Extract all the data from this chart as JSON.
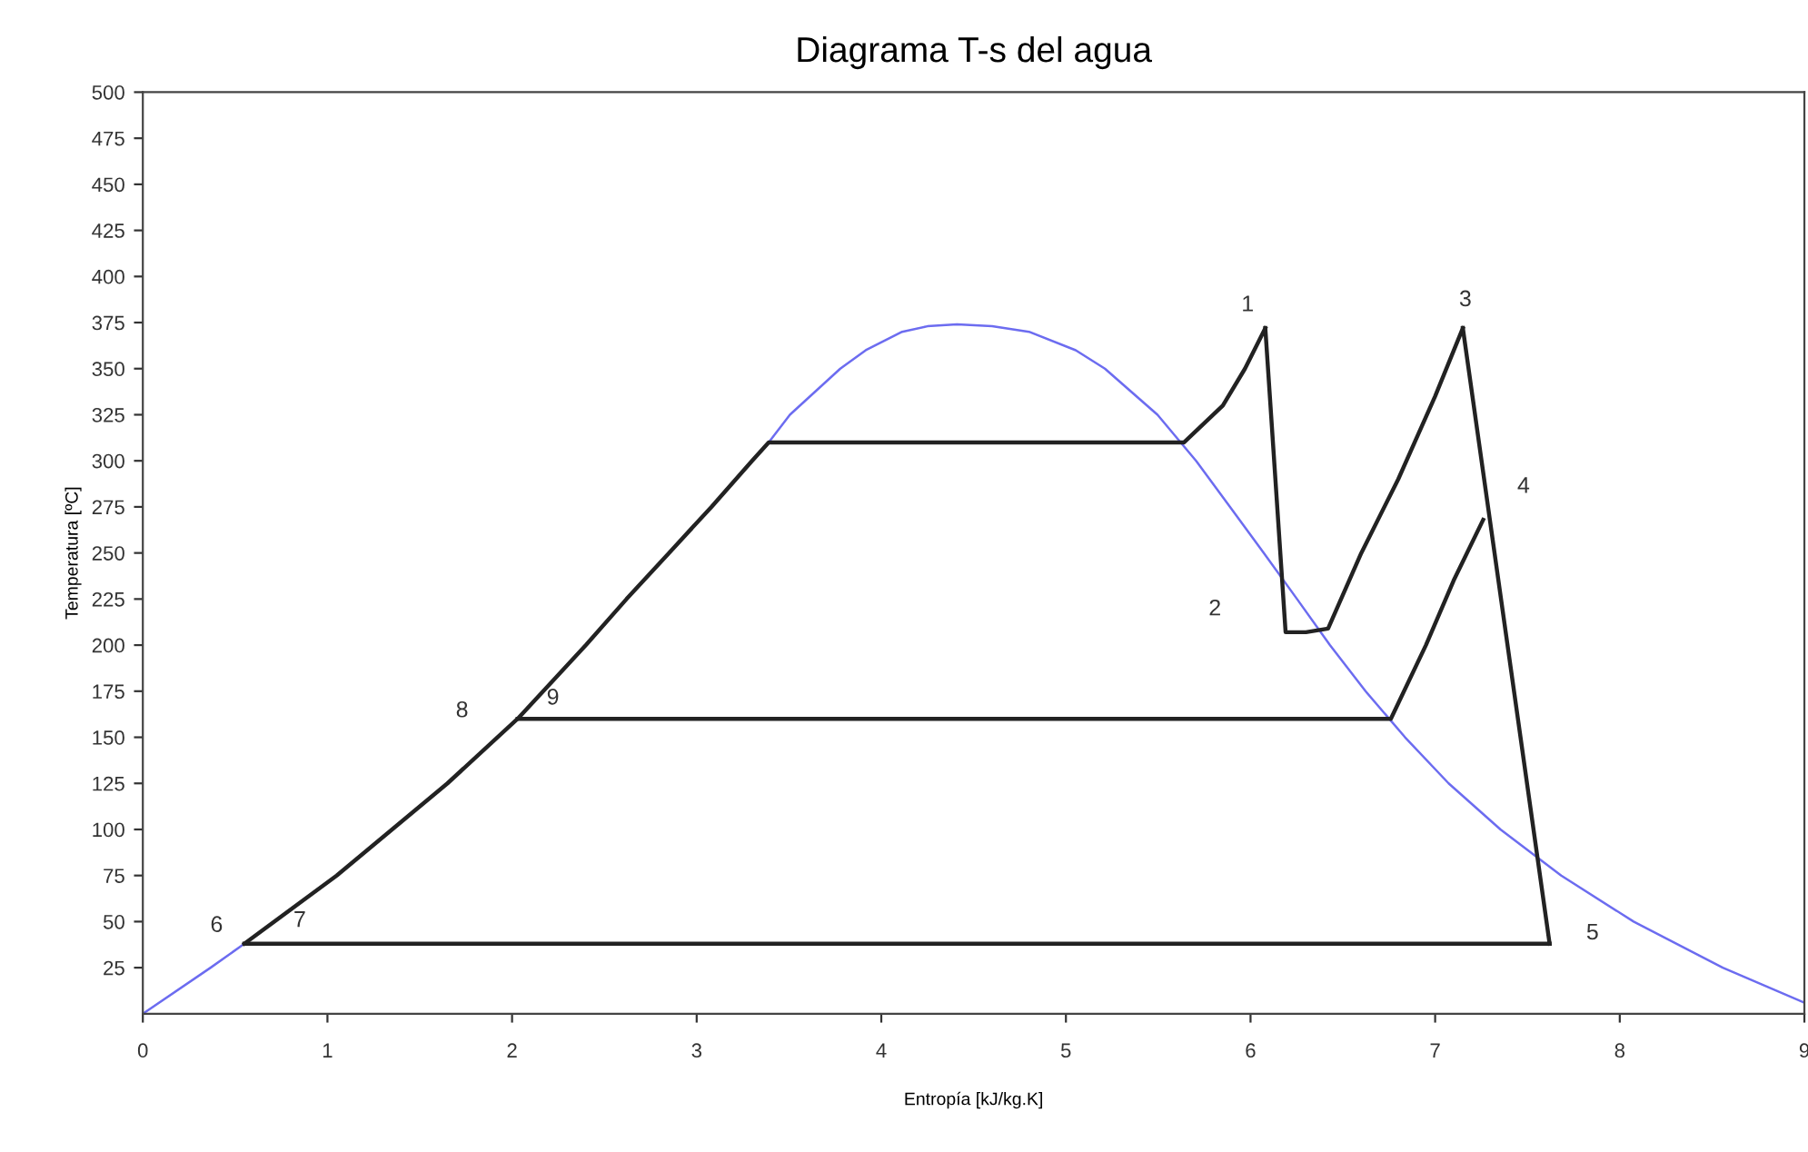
{
  "chart_data": {
    "type": "line",
    "title": "Diagrama T-s del agua",
    "xlabel": "Entropía [kJ/kg.K]",
    "ylabel": "Temperatura [ºC]",
    "xlim": [
      0,
      9
    ],
    "xticks": [
      0,
      1,
      2,
      3,
      4,
      5,
      6,
      7,
      8,
      9
    ],
    "ylim": [
      0,
      500
    ],
    "yticks": [
      25,
      50,
      75,
      100,
      125,
      150,
      175,
      200,
      225,
      250,
      275,
      300,
      325,
      350,
      375,
      400,
      425,
      450,
      475,
      500
    ],
    "grid": false,
    "legend": false,
    "marker": "none",
    "line_style": "solid",
    "series": [
      {
        "color": "#6c6cf0",
        "x": [
          0,
          0.367,
          0.55,
          null,
          3.39,
          3.505,
          3.778,
          3.916,
          4.113,
          4.25,
          4.41,
          4.6,
          4.8,
          5.053,
          5.211,
          5.496,
          5.705,
          5.889,
          6.072,
          6.252,
          6.43,
          6.623,
          6.837,
          7.073,
          7.354,
          7.683,
          8.075,
          8.558,
          9.0
        ],
        "values": [
          0,
          25,
          38,
          null,
          310,
          325,
          350,
          360,
          370,
          373,
          374,
          373,
          370,
          360,
          350,
          325,
          300,
          275,
          250,
          225,
          200,
          175,
          150,
          125,
          100,
          75,
          50,
          25,
          6
        ]
      },
      {
        "color": "#222222",
        "x": [
          0.55,
          1.05,
          1.35,
          1.65,
          2.03,
          2.4,
          2.62,
          2.85,
          3.08,
          3.3,
          3.39,
          5.64,
          5.85,
          5.97,
          6.08
        ],
        "values": [
          38,
          75,
          100,
          125,
          160,
          200,
          225,
          250,
          275,
          300,
          310,
          310,
          330,
          350,
          372
        ]
      },
      {
        "color": "#222222",
        "x": [
          6.08,
          6.19,
          6.3,
          6.42,
          6.6,
          6.8,
          7.0,
          7.15
        ],
        "values": [
          372,
          207,
          207,
          209,
          250,
          290,
          335,
          372
        ]
      },
      {
        "color": "#222222",
        "x": [
          7.15,
          7.62
        ],
        "values": [
          372,
          38
        ]
      },
      {
        "color": "#222222",
        "x": [
          0.55,
          7.62
        ],
        "values": [
          38,
          38
        ]
      },
      {
        "color": "#222222",
        "x": [
          2.03,
          6.76,
          6.95,
          7.1,
          7.26
        ],
        "values": [
          160,
          160,
          200,
          235,
          268
        ]
      }
    ],
    "annotations": [
      {
        "text": "1",
        "x": 6.08,
        "y": 372
      },
      {
        "text": "2",
        "x": 6.19,
        "y": 207
      },
      {
        "text": "3",
        "x": 7.15,
        "y": 372
      },
      {
        "text": "4",
        "x": 7.26,
        "y": 268
      },
      {
        "text": "5",
        "x": 7.62,
        "y": 38
      },
      {
        "text": "6",
        "x": 0.55,
        "y": 38
      },
      {
        "text": "7",
        "x": 0.85,
        "y": 38
      },
      {
        "text": "8",
        "x": 2.03,
        "y": 160
      },
      {
        "text": "9",
        "x": 2.03,
        "y": 160
      }
    ]
  }
}
